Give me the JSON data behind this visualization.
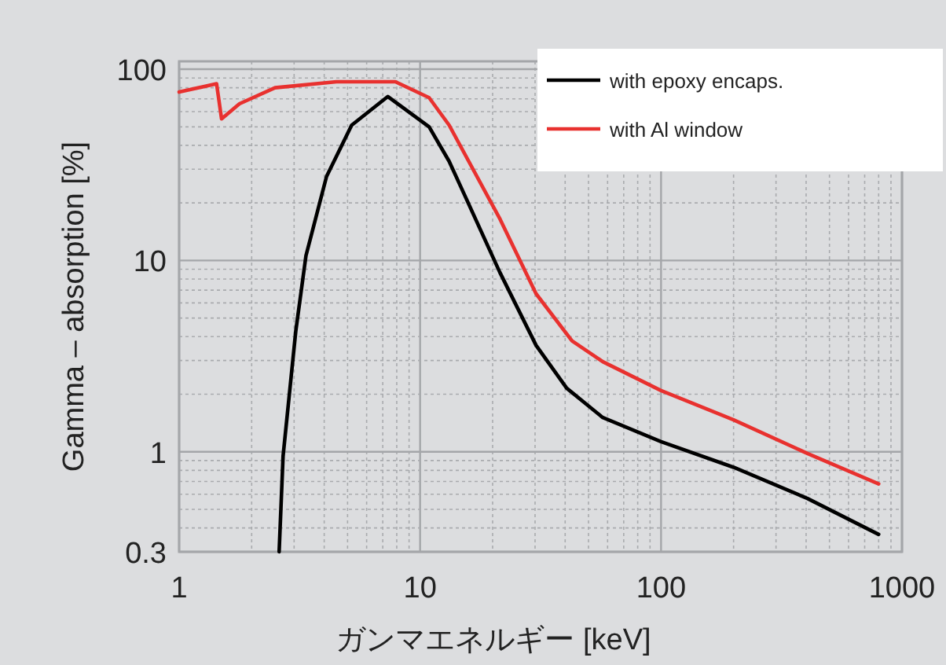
{
  "chart_data": {
    "type": "line",
    "xlabel": "ガンマエネルギー [keV]",
    "ylabel": "Gamma – absorption [%]",
    "log": "xy",
    "grid": true,
    "legend": "top right",
    "xlim": [
      1,
      1000
    ],
    "xticks": [
      1,
      10,
      100,
      1000
    ],
    "ylim": [
      0.3,
      110
    ],
    "yticks": [
      0.3,
      1,
      10,
      100
    ],
    "series": [
      {
        "name": "with epoxy encaps.",
        "color": "#000000",
        "x": [
          2.6,
          2.7,
          3.05,
          3.36,
          4.09,
          5.2,
          7.35,
          10.9,
          13.2,
          15.3,
          21.4,
          30.3,
          40.6,
          57.3,
          100,
          200,
          405,
          800
        ],
        "values": [
          0.3,
          0.95,
          4.3,
          10.6,
          27.5,
          51,
          72,
          50,
          33,
          22,
          8.7,
          3.6,
          2.15,
          1.51,
          1.13,
          0.83,
          0.57,
          0.37
        ]
      },
      {
        "name": "with Al window",
        "color": "#e8312f",
        "x": [
          1.0,
          1.43,
          1.5,
          1.78,
          2.5,
          4.5,
          7.9,
          10.9,
          13.2,
          21.5,
          30.3,
          42.7,
          57.3,
          100,
          200,
          405,
          800
        ],
        "values": [
          76,
          84,
          55,
          66,
          80,
          86,
          86,
          71,
          51,
          16.4,
          6.7,
          3.8,
          2.96,
          2.09,
          1.47,
          0.98,
          0.68
        ]
      }
    ]
  }
}
